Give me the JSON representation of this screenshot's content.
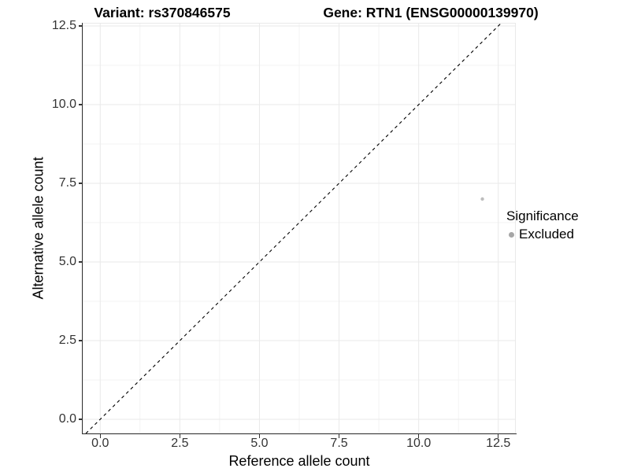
{
  "header": {
    "title_left": "Variant: rs370846575",
    "title_right": "Gene: RTN1 (ENSG00000139970)"
  },
  "chart_data": {
    "type": "scatter",
    "xlabel": "Reference allele count",
    "ylabel": "Alternative allele count",
    "xlim": [
      -0.55,
      13.05
    ],
    "ylim": [
      -0.45,
      12.6
    ],
    "xticks": [
      0,
      2.5,
      5,
      7.5,
      10,
      12.5
    ],
    "xtick_labels": [
      "0.0",
      "2.5",
      "5.0",
      "7.5",
      "10.0",
      "12.5"
    ],
    "yticks": [
      0,
      2.5,
      5,
      7.5,
      10,
      12.5
    ],
    "ytick_labels": [
      "0.0",
      "2.5",
      "5.0",
      "7.5",
      "10.0",
      "12.5"
    ],
    "minor_ticks": [
      1.25,
      3.75,
      6.25,
      8.75,
      11.25
    ],
    "grid": "major+minor",
    "legend_position": "right",
    "reference_line": {
      "type": "identity-diagonal",
      "slope": 1,
      "intercept": 0,
      "style": "dashed",
      "color": "#000000"
    },
    "series": [
      {
        "name": "Excluded",
        "color": "#bdbdbd",
        "points": [
          {
            "x": 12,
            "y": 7
          }
        ]
      }
    ],
    "legend": {
      "title": "Significance",
      "entries": [
        {
          "label": "Excluded",
          "color": "#a6a6a6"
        }
      ]
    }
  },
  "colors": {
    "background": "#ffffff",
    "axis": "#333333",
    "tick_label": "#333333",
    "grid_major": "#e9e9e9",
    "grid_minor": "#f3f3f3",
    "panel_border": "#e9e9e9",
    "diagonal": "#000000",
    "point": "#bdbdbd"
  }
}
